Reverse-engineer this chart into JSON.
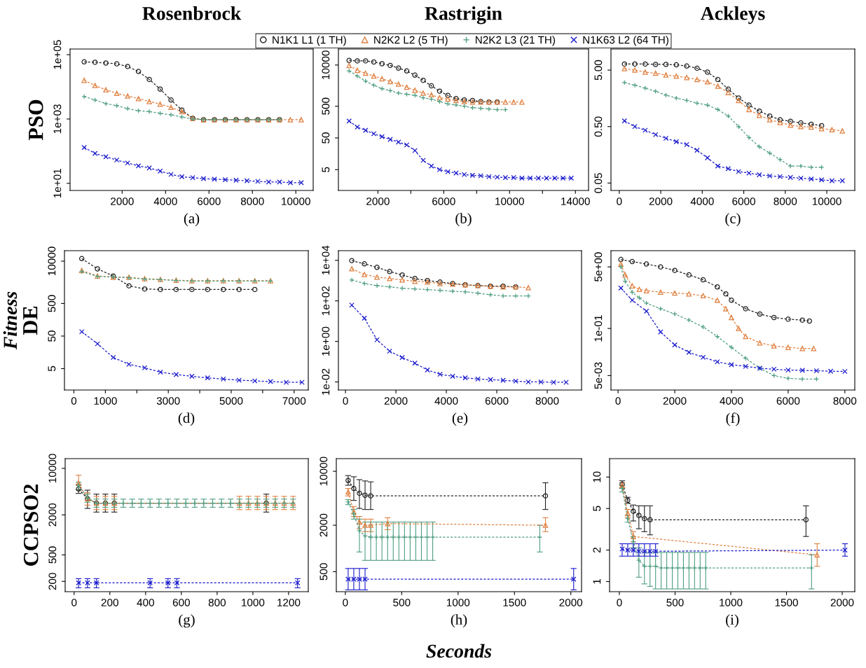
{
  "chart_data": [
    {
      "type": "line",
      "title": "Rosenbrock",
      "xlabel": "(a)",
      "ylabel": "PSO",
      "log": "y",
      "line_style": "dashed",
      "xlim": [
        -400,
        10800
      ],
      "ylim": [
        6,
        150000
      ],
      "xticks": [
        2000,
        4000,
        6000,
        8000,
        10000
      ],
      "yticks": [
        {
          "value": 10,
          "label": "1e+01"
        },
        {
          "value": 1000,
          "label": "1e+03"
        },
        {
          "value": 100000,
          "label": "1e+05"
        }
      ],
      "series": [
        {
          "color": "#222222",
          "marker": "circle",
          "x": [
            250,
            750,
            1250,
            1750,
            2250,
            2750,
            3250,
            3750,
            4250,
            4750,
            5250,
            5750,
            6250,
            6750,
            7250,
            7750,
            8250,
            8750,
            9250
          ],
          "values": [
            60000,
            58000,
            55000,
            52000,
            43000,
            30000,
            17000,
            8500,
            3900,
            1900,
            1050,
            950,
            950,
            950,
            950,
            950,
            950,
            950,
            950
          ]
        },
        {
          "color": "#e08040",
          "marker": "triangle",
          "x": [
            250,
            750,
            1250,
            1750,
            2250,
            2750,
            3250,
            3750,
            4250,
            4750,
            5250,
            5750,
            6250,
            6750,
            7250,
            7750,
            8250,
            8750,
            9250,
            9750,
            10250
          ],
          "values": [
            16000,
            11000,
            8100,
            6300,
            5200,
            4300,
            3500,
            2900,
            2300,
            1700,
            1050,
            950,
            950,
            950,
            950,
            950,
            950,
            950,
            950,
            950,
            950
          ]
        },
        {
          "color": "#4f9e80",
          "marker": "plus",
          "x": [
            250,
            750,
            1250,
            1750,
            2250,
            2750,
            3250,
            3750,
            4250,
            4750,
            5250,
            5750,
            6250,
            6750,
            7250,
            7750,
            8250,
            8750,
            9250
          ],
          "values": [
            5000,
            3900,
            3000,
            2600,
            2100,
            1800,
            1700,
            1500,
            1350,
            1150,
            1000,
            950,
            950,
            950,
            950,
            950,
            950,
            950,
            950
          ]
        },
        {
          "color": "#1a1acc",
          "marker": "cross",
          "x": [
            250,
            750,
            1250,
            1750,
            2250,
            2750,
            3250,
            3750,
            4250,
            4750,
            5250,
            5750,
            6250,
            6750,
            7250,
            7750,
            8250,
            8750,
            9250,
            9750,
            10250
          ],
          "values": [
            130,
            85,
            67,
            53,
            43,
            35,
            30,
            24,
            19,
            16,
            15,
            14,
            13.5,
            13,
            12.5,
            12,
            11.5,
            11,
            11,
            10.5,
            10.5
          ]
        }
      ]
    },
    {
      "type": "line",
      "title": "Rastrigin",
      "xlabel": "(b)",
      "log": "y",
      "line_style": "dashed",
      "legend": "top",
      "xlim": [
        -400,
        14800
      ],
      "ylim": [
        1.1,
        32000
      ],
      "xticks": [
        2000,
        {
          "value": 4000,
          "label": null
        },
        6000,
        {
          "value": 8000,
          "label": null
        },
        10000,
        {
          "value": 12000,
          "label": null
        },
        14000
      ],
      "yticks": [
        5,
        50,
        500,
        10000
      ],
      "series": [
        {
          "name": "N1K1 L1 (1 TH)",
          "color": "#222222",
          "marker": "circle",
          "x": [
            250,
            750,
            1250,
            1750,
            2250,
            2750,
            3250,
            3750,
            4250,
            4750,
            5250,
            5750,
            6250,
            6750,
            7250,
            7750,
            8250,
            8750,
            9250
          ],
          "values": [
            14000,
            13500,
            13500,
            12500,
            11000,
            9700,
            8000,
            6500,
            4800,
            3300,
            2200,
            1500,
            1100,
            870,
            790,
            760,
            700,
            680,
            680
          ]
        },
        {
          "name": "N2K2 L2 (5 TH)",
          "color": "#e08040",
          "marker": "triangle",
          "x": [
            250,
            750,
            1250,
            1750,
            2250,
            2750,
            3250,
            3750,
            4250,
            4750,
            5250,
            5750,
            6250,
            6750,
            7250,
            7750,
            8250,
            8750,
            9250,
            9750,
            10250,
            10750
          ],
          "values": [
            9700,
            6800,
            5500,
            4500,
            3700,
            3000,
            2500,
            2000,
            1600,
            1300,
            1150,
            930,
            840,
            760,
            700,
            680,
            680,
            680,
            680,
            680,
            680,
            680
          ]
        },
        {
          "name": "N2K2 L3 (21 TH)",
          "color": "#4f9e80",
          "marker": "plus",
          "x": [
            250,
            750,
            1250,
            1750,
            2250,
            2750,
            3250,
            3750,
            4250,
            4750,
            5250,
            5750,
            6250,
            6750,
            7250,
            7750,
            8250,
            8750,
            9250,
            9750
          ],
          "values": [
            6500,
            4500,
            3100,
            2300,
            1800,
            1550,
            1300,
            1200,
            1100,
            930,
            840,
            700,
            590,
            550,
            500,
            450,
            430,
            410,
            390,
            390
          ]
        },
        {
          "name": "N1K63 L2 (64 TH)",
          "color": "#1a1acc",
          "marker": "cross",
          "x": [
            250,
            750,
            1250,
            1750,
            2250,
            2750,
            3250,
            3750,
            4250,
            4750,
            5250,
            5750,
            6250,
            6750,
            7250,
            7750,
            8250,
            8750,
            9250,
            9750,
            10250,
            10750,
            11250,
            11750,
            12250,
            12750,
            13250,
            13750
          ],
          "values": [
            170,
            110,
            87,
            68,
            55,
            45,
            37,
            30,
            20,
            9.8,
            6.5,
            5,
            4.3,
            3.9,
            3.5,
            3.3,
            3.2,
            3.0,
            2.9,
            2.8,
            2.8,
            2.7,
            2.7,
            2.7,
            2.7,
            2.7,
            2.7,
            2.7
          ]
        }
      ]
    },
    {
      "type": "line",
      "title": "Ackleys",
      "xlabel": "(c)",
      "log": "y",
      "line_style": "dashed",
      "xlim": [
        -400,
        11350
      ],
      "ylim": [
        0.037,
        11.8
      ],
      "xticks": [
        0,
        2000,
        4000,
        6000,
        8000,
        10000
      ],
      "yticks": [
        {
          "value": 0.05,
          "label": "0.05"
        },
        {
          "value": 0.5,
          "label": "0.50"
        },
        {
          "value": 5,
          "label": "5.00"
        }
      ],
      "series": [
        {
          "color": "#222222",
          "marker": "circle",
          "x": [
            250,
            750,
            1250,
            1750,
            2250,
            2750,
            3250,
            3750,
            4250,
            4750,
            5250,
            5750,
            6250,
            6750,
            7250,
            7750,
            8250,
            8750,
            9250,
            9750
          ],
          "values": [
            6.4,
            6.4,
            6.4,
            6.3,
            6.3,
            6.2,
            5.9,
            5.4,
            4.6,
            3.4,
            2.3,
            1.6,
            1.2,
            0.94,
            0.77,
            0.66,
            0.62,
            0.58,
            0.55,
            0.52
          ]
        },
        {
          "color": "#e08040",
          "marker": "triangle",
          "x": [
            250,
            750,
            1250,
            1750,
            2250,
            2750,
            3250,
            3750,
            4250,
            4750,
            5250,
            5750,
            6250,
            6750,
            7250,
            7750,
            8250,
            8750,
            9250,
            9750,
            10250,
            10750
          ],
          "values": [
            5.3,
            5,
            4.6,
            4.4,
            4.1,
            3.9,
            3.7,
            3.4,
            3.1,
            2.6,
            2.0,
            1.45,
            1.0,
            0.79,
            0.66,
            0.59,
            0.53,
            0.5,
            0.49,
            0.46,
            0.44,
            0.42
          ]
        },
        {
          "color": "#4f9e80",
          "marker": "plus",
          "x": [
            250,
            750,
            1250,
            1750,
            2250,
            2750,
            3250,
            3750,
            4250,
            4750,
            5250,
            5750,
            6250,
            6750,
            7250,
            7750,
            8250,
            8750,
            9250,
            9750
          ],
          "values": [
            3.0,
            2.7,
            2.4,
            2.1,
            1.8,
            1.6,
            1.45,
            1.3,
            1.2,
            1.0,
            0.77,
            0.5,
            0.32,
            0.22,
            0.17,
            0.13,
            0.1,
            0.1,
            0.095,
            0.095
          ]
        },
        {
          "color": "#1a1acc",
          "marker": "cross",
          "x": [
            250,
            750,
            1250,
            1750,
            2250,
            2750,
            3250,
            3750,
            4250,
            4750,
            5250,
            5750,
            6250,
            6750,
            7250,
            7750,
            8250,
            8750,
            9250,
            9750,
            10250,
            10750
          ],
          "values": [
            0.63,
            0.5,
            0.43,
            0.36,
            0.31,
            0.27,
            0.24,
            0.19,
            0.14,
            0.1,
            0.09,
            0.08,
            0.075,
            0.07,
            0.067,
            0.065,
            0.063,
            0.061,
            0.059,
            0.057,
            0.055,
            0.055
          ]
        }
      ]
    },
    {
      "type": "line",
      "xlabel": "(d)",
      "ylabel": "DE",
      "annotations": [
        "Fitness"
      ],
      "log": "y",
      "line_style": "dashed",
      "xlim": [
        -300,
        7450
      ],
      "ylim": [
        1.1,
        21000
      ],
      "xticks": [
        0,
        1000,
        {
          "value": 2000,
          "label": null
        },
        3000,
        {
          "value": 4000,
          "label": null
        },
        5000,
        {
          "value": 6000,
          "label": null
        },
        7000
      ],
      "yticks": [
        5,
        50,
        500,
        10000
      ],
      "series": [
        {
          "color": "#222222",
          "marker": "circle",
          "x": [
            250,
            750,
            1250,
            1750,
            2250,
            2750,
            3250,
            3750,
            4250,
            4750,
            5250,
            5750
          ],
          "values": [
            12000,
            5800,
            3500,
            1750,
            1400,
            1350,
            1350,
            1350,
            1350,
            1350,
            1350,
            1350
          ]
        },
        {
          "color": "#e08040",
          "marker": "triangle",
          "x": [
            250,
            750,
            1250,
            1750,
            2250,
            2750,
            3250,
            3750,
            4250,
            4750,
            5250,
            5750,
            6250
          ],
          "values": [
            5200,
            3500,
            3200,
            3200,
            2900,
            2750,
            2600,
            2500,
            2500,
            2500,
            2500,
            2500,
            2500
          ]
        },
        {
          "color": "#4f9e80",
          "marker": "plus",
          "x": [
            250,
            750,
            1250,
            1750,
            2250,
            2750,
            3250,
            3750,
            4250,
            4750,
            5250,
            5750,
            6250
          ],
          "values": [
            4800,
            3400,
            3300,
            3100,
            2800,
            2700,
            2550,
            2450,
            2450,
            2450,
            2450,
            2450,
            2450
          ]
        },
        {
          "color": "#1a1acc",
          "marker": "cross",
          "x": [
            250,
            750,
            1250,
            1750,
            2250,
            2750,
            3250,
            3750,
            4250,
            4750,
            5250,
            5750,
            6250,
            6750,
            7250
          ],
          "values": [
            68,
            29,
            11,
            6.8,
            5.3,
            3.9,
            3.3,
            2.9,
            2.6,
            2.4,
            2.2,
            2.1,
            2.0,
            1.9,
            1.9
          ]
        }
      ]
    },
    {
      "type": "line",
      "xlabel": "(e)",
      "log": "y",
      "line_style": "dashed",
      "xlim": [
        -280,
        9360
      ],
      "ylim": [
        0.004,
        30000
      ],
      "xticks": [
        0,
        2000,
        4000,
        6000,
        8000
      ],
      "yticks": [
        {
          "value": 0.01,
          "label": "1e-02"
        },
        {
          "value": 1,
          "label": "1e+00"
        },
        {
          "value": 100,
          "label": "1e+02"
        },
        {
          "value": 10000,
          "label": "1e+04"
        }
      ],
      "series": [
        {
          "color": "#222222",
          "marker": "circle",
          "x": [
            250,
            750,
            1250,
            1750,
            2250,
            2750,
            3250,
            3750,
            4250,
            4750,
            5250,
            5750,
            6250,
            6750
          ],
          "values": [
            9700,
            6700,
            4500,
            2800,
            1900,
            1270,
            1000,
            850,
            720,
            620,
            570,
            530,
            530,
            490
          ]
        },
        {
          "color": "#e08040",
          "marker": "triangle",
          "x": [
            250,
            750,
            1250,
            1750,
            2250,
            2750,
            3250,
            3750,
            4250,
            4750,
            5250,
            5750,
            6250,
            6750,
            7250
          ],
          "values": [
            3850,
            2000,
            1500,
            1270,
            1080,
            930,
            850,
            720,
            670,
            620,
            570,
            530,
            490,
            490,
            450
          ]
        },
        {
          "color": "#4f9e80",
          "marker": "plus",
          "x": [
            250,
            750,
            1250,
            1750,
            2250,
            2750,
            3250,
            3750,
            4250,
            4750,
            5250,
            5750,
            6250,
            6750,
            7250
          ],
          "values": [
            1080,
            720,
            570,
            490,
            420,
            390,
            360,
            330,
            300,
            280,
            240,
            200,
            175,
            175,
            175
          ]
        },
        {
          "color": "#1a1acc",
          "marker": "cross",
          "x": [
            250,
            750,
            1250,
            1750,
            2250,
            2750,
            3250,
            3750,
            4250,
            4750,
            5250,
            5750,
            6250,
            6750,
            7250,
            7750,
            8250,
            8750
          ],
          "values": [
            62,
            14,
            1.2,
            0.33,
            0.16,
            0.085,
            0.039,
            0.024,
            0.019,
            0.016,
            0.014,
            0.013,
            0.012,
            0.011,
            0.01,
            0.01,
            0.0096,
            0.0096
          ]
        }
      ]
    },
    {
      "type": "line",
      "xlabel": "(f)",
      "log": "y",
      "line_style": "dashed",
      "xlim": [
        -250,
        8350
      ],
      "ylim": [
        0.002,
        14
      ],
      "xticks": [
        0,
        2000,
        4000,
        6000,
        8000
      ],
      "yticks": [
        {
          "value": 0.005,
          "label": "5e-03"
        },
        {
          "value": 0.1,
          "label": "1e-01"
        },
        {
          "value": 5,
          "label": "5e+00"
        }
      ],
      "series": [
        {
          "color": "#222222",
          "marker": "circle",
          "x": [
            100,
            500,
            1000,
            1500,
            2000,
            2500,
            3000,
            3500,
            3800,
            4000,
            4500,
            5000,
            5500,
            6000,
            6500,
            6750
          ],
          "values": [
            8,
            7,
            6,
            5,
            4,
            3,
            2.2,
            1.4,
            0.9,
            0.6,
            0.35,
            0.25,
            0.2,
            0.18,
            0.17,
            0.16
          ]
        },
        {
          "color": "#e08040",
          "marker": "triangle",
          "x": [
            100,
            250,
            500,
            750,
            1000,
            1500,
            2000,
            2500,
            3000,
            3500,
            3800,
            4000,
            4250,
            4500,
            5000,
            5500,
            6000,
            6500,
            6900
          ],
          "values": [
            6,
            3,
            1.5,
            1.2,
            1.1,
            1.0,
            0.95,
            0.9,
            0.8,
            0.6,
            0.35,
            0.2,
            0.1,
            0.06,
            0.04,
            0.033,
            0.03,
            0.028,
            0.028
          ]
        },
        {
          "color": "#4f9e80",
          "marker": "plus",
          "x": [
            100,
            250,
            500,
            750,
            1000,
            1500,
            2000,
            2500,
            3000,
            3500,
            4000,
            4500,
            5000,
            5500,
            6000,
            6500,
            7000
          ],
          "values": [
            5,
            2,
            1.0,
            0.7,
            0.5,
            0.35,
            0.25,
            0.17,
            0.11,
            0.06,
            0.03,
            0.015,
            0.008,
            0.005,
            0.0042,
            0.004,
            0.004
          ]
        },
        {
          "color": "#1a1acc",
          "marker": "cross",
          "x": [
            100,
            500,
            1000,
            1500,
            2000,
            2500,
            3000,
            3500,
            4000,
            4500,
            5000,
            5500,
            6000,
            6500,
            7000,
            7500,
            8000
          ],
          "values": [
            1.3,
            0.6,
            0.3,
            0.08,
            0.035,
            0.022,
            0.016,
            0.012,
            0.01,
            0.009,
            0.008,
            0.0075,
            0.0071,
            0.007,
            0.0068,
            0.0066,
            0.0065
          ]
        }
      ]
    },
    {
      "type": "line",
      "xlabel": "(g)",
      "ylabel": "CCPSO2",
      "log": "y",
      "line_style": "dashed",
      "xlim": [
        -50,
        1310
      ],
      "ylim": [
        140,
        14000
      ],
      "xticks": [
        0,
        200,
        400,
        600,
        800,
        1000,
        1200
      ],
      "yticks": [
        200,
        500,
        2000,
        10000
      ],
      "series": [
        {
          "color": "#222222",
          "marker": "circle",
          "x": [
            25,
            75,
            125,
            175,
            225,
            1075
          ],
          "values": [
            4900,
            3500,
            3000,
            3000,
            3000,
            3000
          ],
          "errors": [
            [
              4200,
              5700
            ],
            [
              2500,
              4700
            ],
            [
              2200,
              4100
            ],
            [
              2200,
              4100
            ],
            [
              2200,
              4100
            ],
            [
              2200,
              4100
            ]
          ]
        },
        {
          "color": "#e08040",
          "marker": "triangle",
          "x": [
            25,
            75,
            125,
            175,
            225,
            925,
            975,
            1025,
            1075,
            1125,
            1175,
            1225
          ],
          "values": [
            6000,
            3500,
            3000,
            3000,
            3000,
            3000,
            3000,
            3000,
            3000,
            3000,
            3000,
            3000
          ],
          "errors": [
            [
              4700,
              7900
            ],
            [
              2800,
              4300
            ],
            [
              2400,
              3800
            ],
            [
              2400,
              3800
            ],
            [
              2400,
              3800
            ],
            [
              2400,
              3800
            ],
            [
              2400,
              3800
            ],
            [
              2400,
              3800
            ],
            [
              2400,
              3800
            ],
            [
              2400,
              3800
            ],
            [
              2400,
              3800
            ],
            [
              2400,
              3800
            ]
          ]
        },
        {
          "color": "#4f9e80",
          "marker": "plus",
          "x": [
            25,
            75,
            125,
            175,
            225,
            275,
            325,
            375,
            425,
            475,
            525,
            575,
            625,
            675,
            725,
            775,
            825,
            875,
            925,
            975,
            1025,
            1075,
            1125,
            1175,
            1225
          ],
          "values": [
            5500,
            3600,
            3000,
            3000,
            3000,
            3000,
            3000,
            3000,
            3000,
            3000,
            3000,
            3000,
            3000,
            3000,
            3000,
            3000,
            3000,
            3000,
            3000,
            3000,
            3000,
            3000,
            3000,
            3000,
            3000
          ],
          "errors": [
            [
              4800,
              6200
            ],
            [
              3100,
              4100
            ],
            [
              2600,
              3450
            ],
            [
              2600,
              3450
            ],
            [
              2600,
              3450
            ],
            [
              2600,
              3450
            ],
            [
              2600,
              3450
            ],
            [
              2600,
              3450
            ],
            [
              2600,
              3450
            ],
            [
              2600,
              3450
            ],
            [
              2600,
              3450
            ],
            [
              2600,
              3450
            ],
            [
              2600,
              3450
            ],
            [
              2600,
              3450
            ],
            [
              2600,
              3450
            ],
            [
              2600,
              3450
            ],
            [
              2600,
              3450
            ],
            [
              2600,
              3450
            ],
            [
              2600,
              3450
            ],
            [
              2600,
              3450
            ],
            [
              2600,
              3450
            ],
            [
              2600,
              3450
            ],
            [
              2600,
              3450
            ],
            [
              2600,
              3450
            ],
            [
              2600,
              3450
            ]
          ]
        },
        {
          "color": "#1a1acc",
          "marker": "cross",
          "x": [
            25,
            75,
            125,
            425,
            525,
            575,
            1250
          ],
          "values": [
            190,
            190,
            190,
            190,
            190,
            190,
            190
          ],
          "errors": [
            [
              160,
              220
            ],
            [
              160,
              220
            ],
            [
              160,
              220
            ],
            [
              160,
              220
            ],
            [
              160,
              220
            ],
            [
              160,
              220
            ],
            [
              160,
              220
            ]
          ]
        }
      ]
    },
    {
      "type": "line",
      "xlabel": "(h)",
      "annotations": [
        "Seconds"
      ],
      "log": "y",
      "line_style": "dashed",
      "xlim": [
        -80,
        2095
      ],
      "ylim": [
        275,
        14600
      ],
      "xticks": [
        0,
        500,
        1000,
        1500,
        2000
      ],
      "yticks": [
        500,
        2000,
        10000
      ],
      "series": [
        {
          "color": "#222222",
          "marker": "circle",
          "x": [
            25,
            75,
            125,
            175,
            225,
            1775
          ],
          "values": [
            7600,
            6000,
            5200,
            4900,
            4800,
            4800
          ],
          "errors": [
            [
              6600,
              8800
            ],
            [
              4200,
              8500
            ],
            [
              3300,
              7800
            ],
            [
              3200,
              7500
            ],
            [
              3200,
              7300
            ],
            [
              3200,
              7100
            ]
          ]
        },
        {
          "color": "#e08040",
          "marker": "triangle",
          "x": [
            25,
            75,
            125,
            175,
            225,
            375,
            1775
          ],
          "values": [
            5400,
            3000,
            2200,
            2000,
            2000,
            2100,
            2000
          ],
          "errors": [
            [
              4800,
              6000
            ],
            [
              2600,
              3500
            ],
            [
              1800,
              2600
            ],
            [
              1650,
              2400
            ],
            [
              1650,
              2400
            ],
            [
              1750,
              2500
            ],
            [
              1650,
              2500
            ]
          ]
        },
        {
          "color": "#4f9e80",
          "marker": "plus",
          "x": [
            25,
            75,
            125,
            175,
            225,
            275,
            325,
            375,
            425,
            475,
            525,
            575,
            625,
            675,
            725,
            775,
            1725
          ],
          "values": [
            4000,
            2800,
            1700,
            1450,
            1400,
            1400,
            1400,
            1400,
            1400,
            1400,
            1400,
            1400,
            1400,
            1400,
            1400,
            1400,
            1400
          ],
          "errors": [
            [
              3700,
              4300
            ],
            [
              2400,
              3200
            ],
            [
              900,
              2400
            ],
            [
              700,
              2200
            ],
            [
              700,
              2200
            ],
            [
              700,
              2200
            ],
            [
              700,
              2200
            ],
            [
              700,
              2200
            ],
            [
              700,
              2200
            ],
            [
              700,
              2200
            ],
            [
              700,
              2200
            ],
            [
              700,
              2200
            ],
            [
              700,
              2200
            ],
            [
              700,
              2200
            ],
            [
              700,
              2200
            ],
            [
              700,
              2200
            ],
            [
              900,
              2000
            ]
          ]
        },
        {
          "color": "#1a1acc",
          "marker": "cross",
          "x": [
            25,
            75,
            125,
            175,
            2025
          ],
          "values": [
            400,
            400,
            400,
            400,
            400
          ],
          "errors": [
            [
              290,
              550
            ],
            [
              290,
              550
            ],
            [
              290,
              550
            ],
            [
              290,
              550
            ],
            [
              290,
              550
            ]
          ]
        }
      ]
    },
    {
      "type": "line",
      "xlabel": "(i)",
      "log": "y",
      "line_style": "dashed",
      "xlim": [
        -88,
        2113
      ],
      "ylim": [
        0.8,
        15
      ],
      "xticks": [
        0,
        500,
        1000,
        1500,
        2000
      ],
      "yticks": [
        1,
        2,
        5,
        10
      ],
      "series": [
        {
          "color": "#222222",
          "marker": "circle",
          "x": [
            25,
            75,
            125,
            175,
            225,
            275,
            1675
          ],
          "values": [
            8.5,
            6,
            4.7,
            4.3,
            4.0,
            3.9,
            3.9
          ],
          "errors": [
            [
              7.8,
              9.2
            ],
            [
              5.6,
              6.4
            ],
            [
              3.8,
              5.4
            ],
            [
              3.2,
              5.3
            ],
            [
              3.0,
              5.3
            ],
            [
              2.8,
              5.3
            ],
            [
              2.7,
              5.3
            ]
          ]
        },
        {
          "color": "#e08040",
          "marker": "triangle",
          "x": [
            25,
            75,
            125,
            1775
          ],
          "values": [
            8.3,
            4.5,
            2.7,
            1.8
          ],
          "errors": [
            [
              7.9,
              8.8
            ],
            [
              4.1,
              4.9
            ],
            [
              2.4,
              3.0
            ],
            [
              1.4,
              2.3
            ]
          ]
        },
        {
          "color": "#4f9e80",
          "marker": "plus",
          "x": [
            25,
            75,
            125,
            175,
            225,
            275,
            325,
            375,
            425,
            475,
            525,
            575,
            625,
            675,
            725,
            775,
            1725
          ],
          "values": [
            7.8,
            4.0,
            2.4,
            1.6,
            1.4,
            1.4,
            1.4,
            1.35,
            1.35,
            1.35,
            1.35,
            1.35,
            1.35,
            1.35,
            1.35,
            1.35,
            1.35
          ],
          "errors": [
            [
              7.2,
              8.3
            ],
            [
              3.7,
              4.3
            ],
            [
              2.1,
              2.7
            ],
            [
              1.1,
              2.1
            ],
            [
              0.95,
              1.9
            ],
            [
              0.9,
              1.9
            ],
            [
              0.85,
              1.9
            ],
            [
              0.85,
              1.9
            ],
            [
              0.85,
              1.9
            ],
            [
              0.85,
              1.9
            ],
            [
              0.85,
              1.9
            ],
            [
              0.85,
              1.9
            ],
            [
              0.85,
              1.9
            ],
            [
              0.85,
              1.9
            ],
            [
              0.85,
              1.9
            ],
            [
              0.85,
              1.9
            ],
            [
              0.85,
              1.8
            ]
          ]
        },
        {
          "color": "#1a1acc",
          "marker": "cross",
          "x": [
            25,
            75,
            125,
            175,
            225,
            275,
            325,
            2025
          ],
          "values": [
            2.05,
            2.0,
            2.0,
            1.95,
            1.95,
            1.95,
            1.95,
            2.0
          ],
          "errors": [
            [
              1.75,
              2.3
            ],
            [
              1.75,
              2.3
            ],
            [
              1.75,
              2.3
            ],
            [
              1.75,
              2.3
            ],
            [
              1.75,
              2.3
            ],
            [
              1.75,
              2.3
            ],
            [
              1.75,
              2.3
            ],
            [
              1.75,
              2.3
            ]
          ]
        }
      ]
    }
  ]
}
